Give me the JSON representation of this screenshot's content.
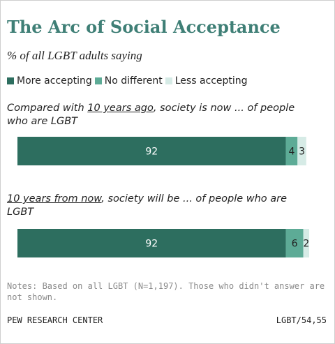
{
  "title": "The Arc of Social Acceptance",
  "subtitle": "% of all LGBT adults saying",
  "legend": [
    {
      "label": "More accepting",
      "color": "#2d6e5f"
    },
    {
      "label": "No different",
      "color": "#5dab96"
    },
    {
      "label": "Less accepting",
      "color": "#d6ebe6"
    }
  ],
  "questions": [
    {
      "pre": "Compared with ",
      "underlined": "10 years ago",
      "post": ", society is now ... of people who are LGBT"
    },
    {
      "pre": "",
      "underlined": "10 years from now",
      "post": ", society will be ... of people who are LGBT"
    }
  ],
  "notes": "Notes: Based on all LGBT (N=1,197). Those who didn't answer are not shown.",
  "source": "PEW RESEARCH CENTER",
  "ref": "LGBT/54,55",
  "chart_data": {
    "type": "bar",
    "orientation": "horizontal",
    "stacked": true,
    "categories": [
      "Compared with 10 years ago, society is now ... of people who are LGBT",
      "10 years from now, society will be ... of people who are LGBT"
    ],
    "series": [
      {
        "name": "More accepting",
        "values": [
          92,
          92
        ],
        "color": "#2d6e5f"
      },
      {
        "name": "No different",
        "values": [
          4,
          6
        ],
        "color": "#5dab96"
      },
      {
        "name": "Less accepting",
        "values": [
          3,
          2
        ],
        "color": "#d6ebe6"
      }
    ],
    "xlim": [
      0,
      100
    ],
    "grid": false,
    "legend_position": "top-left"
  }
}
